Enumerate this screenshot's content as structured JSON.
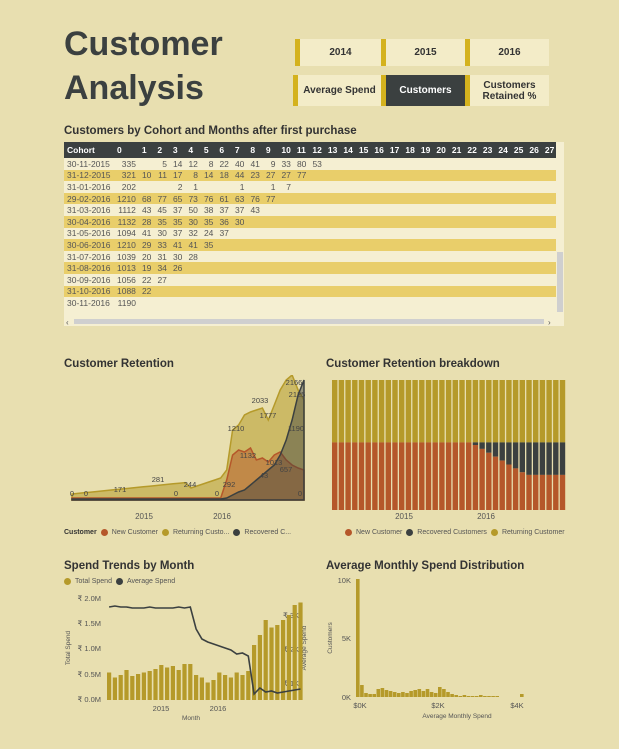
{
  "title_line1": "Customer",
  "title_line2": "Analysis",
  "years": [
    "2014",
    "2015",
    "2016"
  ],
  "metrics": [
    "Average Spend",
    "Customers",
    "Customers Retained %"
  ],
  "selected_metric": "Customers",
  "cohort_table": {
    "title": "Customers by Cohort and Months after first purchase",
    "headers": [
      "Cohort",
      "0",
      "1",
      "2",
      "3",
      "4",
      "5",
      "6",
      "7",
      "8",
      "9",
      "10",
      "11",
      "12",
      "13",
      "14",
      "15",
      "16",
      "17",
      "18",
      "19",
      "20",
      "21",
      "22",
      "23",
      "24",
      "25",
      "26",
      "27"
    ],
    "rows": [
      [
        "30-11-2015",
        "335",
        "",
        "5",
        "14",
        "12",
        "8",
        "22",
        "40",
        "41",
        "9",
        "33",
        "80",
        "53"
      ],
      [
        "31-12-2015",
        "321",
        "10",
        "11",
        "17",
        "8",
        "14",
        "18",
        "44",
        "23",
        "27",
        "27",
        "77"
      ],
      [
        "31-01-2016",
        "202",
        "",
        "",
        "2",
        "1",
        "",
        "",
        "1",
        "",
        "1",
        "7"
      ],
      [
        "29-02-2016",
        "1210",
        "68",
        "77",
        "65",
        "73",
        "76",
        "61",
        "63",
        "76",
        "77"
      ],
      [
        "31-03-2016",
        "1112",
        "43",
        "45",
        "37",
        "50",
        "38",
        "37",
        "37",
        "43"
      ],
      [
        "30-04-2016",
        "1132",
        "28",
        "35",
        "35",
        "30",
        "35",
        "36",
        "30"
      ],
      [
        "31-05-2016",
        "1094",
        "41",
        "30",
        "37",
        "32",
        "24",
        "37"
      ],
      [
        "30-06-2016",
        "1210",
        "29",
        "33",
        "41",
        "41",
        "35"
      ],
      [
        "31-07-2016",
        "1039",
        "20",
        "31",
        "30",
        "28"
      ],
      [
        "31-08-2016",
        "1013",
        "19",
        "34",
        "26"
      ],
      [
        "30-09-2016",
        "1056",
        "22",
        "27"
      ],
      [
        "31-10-2016",
        "1088",
        "22"
      ],
      [
        "30-11-2016",
        "1190"
      ]
    ]
  },
  "retention": {
    "title": "Customer Retention",
    "legend_title": "Customer",
    "legend": [
      "New Customer",
      "Returning Custo...",
      "Recovered C..."
    ],
    "x_ticks": [
      "2015",
      "2016"
    ],
    "labels": [
      "0",
      "0",
      "171",
      "281",
      "244",
      "0",
      "0",
      "292",
      "1210",
      "2033",
      "1777",
      "1132",
      "1013",
      "43",
      "657",
      "1190",
      "2125",
      "2166",
      "0"
    ],
    "colors": {
      "new": "#b5572a",
      "returning": "#b59a2a",
      "recovered": "#3b4040"
    }
  },
  "breakdown": {
    "title": "Customer Retention breakdown",
    "legend": [
      "New Customer",
      "Recovered Customers",
      "Returning Customer"
    ],
    "x_ticks": [
      "2015",
      "2016"
    ]
  },
  "spend": {
    "title": "Spend Trends by Month",
    "legend": [
      "Total Spend",
      "Average Spend"
    ],
    "y_left_ticks": [
      "₹ 2.0M",
      "₹ 1.5M",
      "₹ 1.0M",
      "₹ 0.5M",
      "₹ 0.0M"
    ],
    "y_right_ticks": [
      "₹ 3K",
      "₹ 2K",
      "₹ 1K"
    ],
    "y_left_label": "Total Spend",
    "y_right_label": "Average Spend",
    "x_ticks": [
      "2015",
      "2016"
    ],
    "x_label": "Month"
  },
  "distribution": {
    "title": "Average Monthly Spend Distribution",
    "y_ticks": [
      "10K",
      "5K",
      "0K"
    ],
    "y_label": "Customers",
    "x_ticks": [
      "$0K",
      "$2K",
      "$4K"
    ],
    "x_label": "Average Monthly Spend"
  }
}
